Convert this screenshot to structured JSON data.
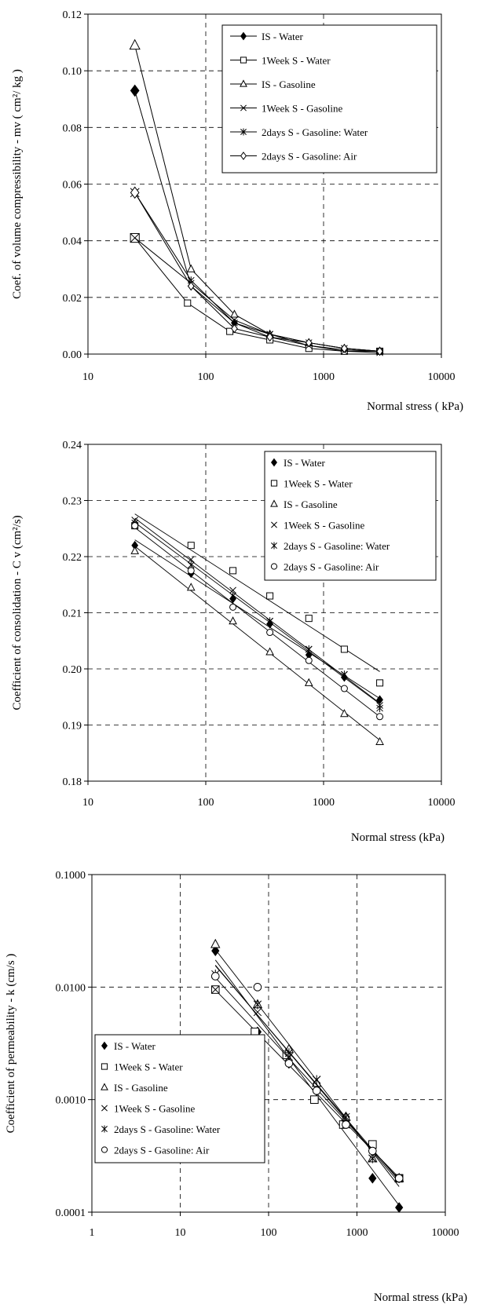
{
  "chart_data": [
    {
      "type": "line",
      "xscale": "log",
      "xlim": [
        10,
        10000
      ],
      "ylim": [
        0,
        0.12
      ],
      "xticks": [
        10,
        100,
        1000,
        10000
      ],
      "yticks": [
        0,
        0.02,
        0.04,
        0.06,
        0.08,
        0.1,
        0.12
      ],
      "xtick_labels": [
        "10",
        "100",
        "1000",
        "10000"
      ],
      "ytick_labels": [
        "0.00",
        "0.02",
        "0.04",
        "0.06",
        "0.08",
        "0.10",
        "0.12"
      ],
      "xlabel": "Normal stress ( kPa)",
      "ylabel": "Coef. of volume compressibility - mv ( cm²/ kg )",
      "grid": "dashed",
      "legend_position": "top-right",
      "series": [
        {
          "name": "IS - Water",
          "marker": "diamond-filled",
          "x": [
            25,
            75,
            175,
            350,
            750,
            1500,
            3000
          ],
          "y": [
            0.093,
            0.024,
            0.011,
            0.006,
            0.003,
            0.0015,
            0.001
          ]
        },
        {
          "name": "1Week S - Water",
          "marker": "square",
          "x": [
            25,
            70,
            160,
            350,
            750,
            1500,
            3000
          ],
          "y": [
            0.041,
            0.018,
            0.008,
            0.005,
            0.002,
            0.001,
            0.001
          ]
        },
        {
          "name": "IS - Gasoline",
          "marker": "triangle",
          "x": [
            25,
            75,
            175,
            350,
            750,
            1500,
            3000
          ],
          "y": [
            0.109,
            0.03,
            0.014,
            0.007,
            0.004,
            0.002,
            0.001
          ]
        },
        {
          "name": "1Week S - Gasoline",
          "marker": "x",
          "x": [
            25,
            75,
            175,
            350,
            750,
            1500,
            3000
          ],
          "y": [
            0.041,
            0.025,
            0.012,
            0.007,
            0.003,
            0.001,
            0.0005
          ]
        },
        {
          "name": "2days S - Gasoline: Water",
          "marker": "star",
          "x": [
            25,
            75,
            175,
            350,
            750,
            1500,
            3000
          ],
          "y": [
            0.057,
            0.026,
            0.011,
            0.007,
            0.004,
            0.002,
            0.001
          ]
        },
        {
          "name": "2days S - Gasoline: Air",
          "marker": "diamond-open",
          "x": [
            25,
            75,
            175,
            350,
            750,
            1500,
            3000
          ],
          "y": [
            0.057,
            0.024,
            0.009,
            0.006,
            0.004,
            0.002,
            0.001
          ]
        }
      ]
    },
    {
      "type": "scatter",
      "xscale": "log",
      "xlim": [
        10,
        10000
      ],
      "ylim": [
        0.18,
        0.24
      ],
      "xticks": [
        10,
        100,
        1000,
        10000
      ],
      "yticks": [
        0.18,
        0.19,
        0.2,
        0.21,
        0.22,
        0.23,
        0.24
      ],
      "xtick_labels": [
        "10",
        "100",
        "1000",
        "10000"
      ],
      "ytick_labels": [
        "0.18",
        "0.19",
        "0.20",
        "0.21",
        "0.22",
        "0.23",
        "0.24"
      ],
      "xlabel": "Normal stress (kPa)",
      "ylabel": "Coefficient of consolidation - C v (cm²/s)",
      "grid": "dashed",
      "legend_position": "top-right",
      "trendlines": "log-linear fit per series",
      "series": [
        {
          "name": "IS - Water",
          "marker": "diamond-filled",
          "x": [
            25,
            75,
            170,
            350,
            750,
            1500,
            3000
          ],
          "y": [
            0.222,
            0.217,
            0.2125,
            0.208,
            0.2025,
            0.1985,
            0.1945
          ]
        },
        {
          "name": "1Week S - Water",
          "marker": "square",
          "x": [
            25,
            75,
            170,
            350,
            750,
            1500,
            3000
          ],
          "y": [
            0.2255,
            0.222,
            0.2175,
            0.213,
            0.209,
            0.2035,
            0.1975
          ]
        },
        {
          "name": "IS - Gasoline",
          "marker": "triangle",
          "x": [
            25,
            75,
            170,
            350,
            750,
            1500,
            3000
          ],
          "y": [
            0.221,
            0.2145,
            0.2085,
            0.203,
            0.1975,
            0.192,
            0.187
          ]
        },
        {
          "name": "1Week S - Gasoline",
          "marker": "x",
          "x": [
            25,
            75,
            170,
            350,
            750,
            1500,
            3000
          ],
          "y": [
            0.2265,
            0.2195,
            0.214,
            0.2085,
            0.2035,
            0.199,
            0.1935
          ]
        },
        {
          "name": "2days S - Gasoline: Water",
          "marker": "star",
          "x": [
            25,
            75,
            170,
            350,
            750,
            1500,
            3000
          ],
          "y": [
            0.226,
            0.2185,
            0.213,
            0.2085,
            0.2035,
            0.199,
            0.193
          ]
        },
        {
          "name": "2days S - Gasoline: Air",
          "marker": "circle",
          "x": [
            25,
            75,
            170,
            350,
            750,
            1500,
            3000
          ],
          "y": [
            0.2255,
            0.2175,
            0.211,
            0.2065,
            0.2015,
            0.1965,
            0.1915
          ]
        }
      ]
    },
    {
      "type": "scatter",
      "xscale": "log",
      "yscale": "log",
      "xlim": [
        1,
        10000
      ],
      "ylim": [
        0.0001,
        0.1
      ],
      "xticks": [
        1,
        10,
        100,
        1000,
        10000
      ],
      "yticks": [
        0.0001,
        0.001,
        0.01,
        0.1
      ],
      "xtick_labels": [
        "1",
        "10",
        "100",
        "1000",
        "10000"
      ],
      "ytick_labels": [
        "0.0001",
        "0.0010",
        "0.0100",
        "0.1000"
      ],
      "xlabel": "Normal stress (kPa)",
      "ylabel": "Coefficient of permeability - k (cm/s )",
      "grid": "dashed",
      "legend_position": "bottom-left",
      "trendlines": "power-law fit per series",
      "series": [
        {
          "name": "IS - Water",
          "marker": "diamond-filled",
          "x": [
            25,
            75,
            170,
            350,
            750,
            1500,
            3000
          ],
          "y": [
            0.021,
            0.004,
            0.0021,
            0.0012,
            0.0007,
            0.0002,
            0.00011
          ]
        },
        {
          "name": "1Week S - Water",
          "marker": "square",
          "x": [
            25,
            70,
            160,
            330,
            700,
            1500,
            3000
          ],
          "y": [
            0.0095,
            0.004,
            0.0025,
            0.001,
            0.0006,
            0.0004,
            0.0002
          ]
        },
        {
          "name": "IS - Gasoline",
          "marker": "triangle",
          "x": [
            25,
            75,
            170,
            350,
            750,
            1500,
            3000
          ],
          "y": [
            0.024,
            0.007,
            0.0028,
            0.0014,
            0.0007,
            0.0003,
            0.0002
          ]
        },
        {
          "name": "1Week S - Gasoline",
          "marker": "x",
          "x": [
            25,
            75,
            170,
            350,
            750,
            1500,
            3000
          ],
          "y": [
            0.0095,
            0.006,
            0.0024,
            0.0015,
            0.0006,
            0.0003,
            0.0002
          ]
        },
        {
          "name": "2days S - Gasoline: Water",
          "marker": "star",
          "x": [
            25,
            75,
            170,
            350,
            750,
            1500,
            3000
          ],
          "y": [
            0.013,
            0.007,
            0.0026,
            0.0015,
            0.0007,
            0.0003,
            0.0002
          ]
        },
        {
          "name": "2days S - Gasoline: Air",
          "marker": "circle",
          "x": [
            25,
            75,
            170,
            350,
            750,
            1500,
            3000
          ],
          "y": [
            0.0125,
            0.01,
            0.0021,
            0.0012,
            0.0006,
            0.00035,
            0.0002
          ]
        }
      ]
    }
  ]
}
